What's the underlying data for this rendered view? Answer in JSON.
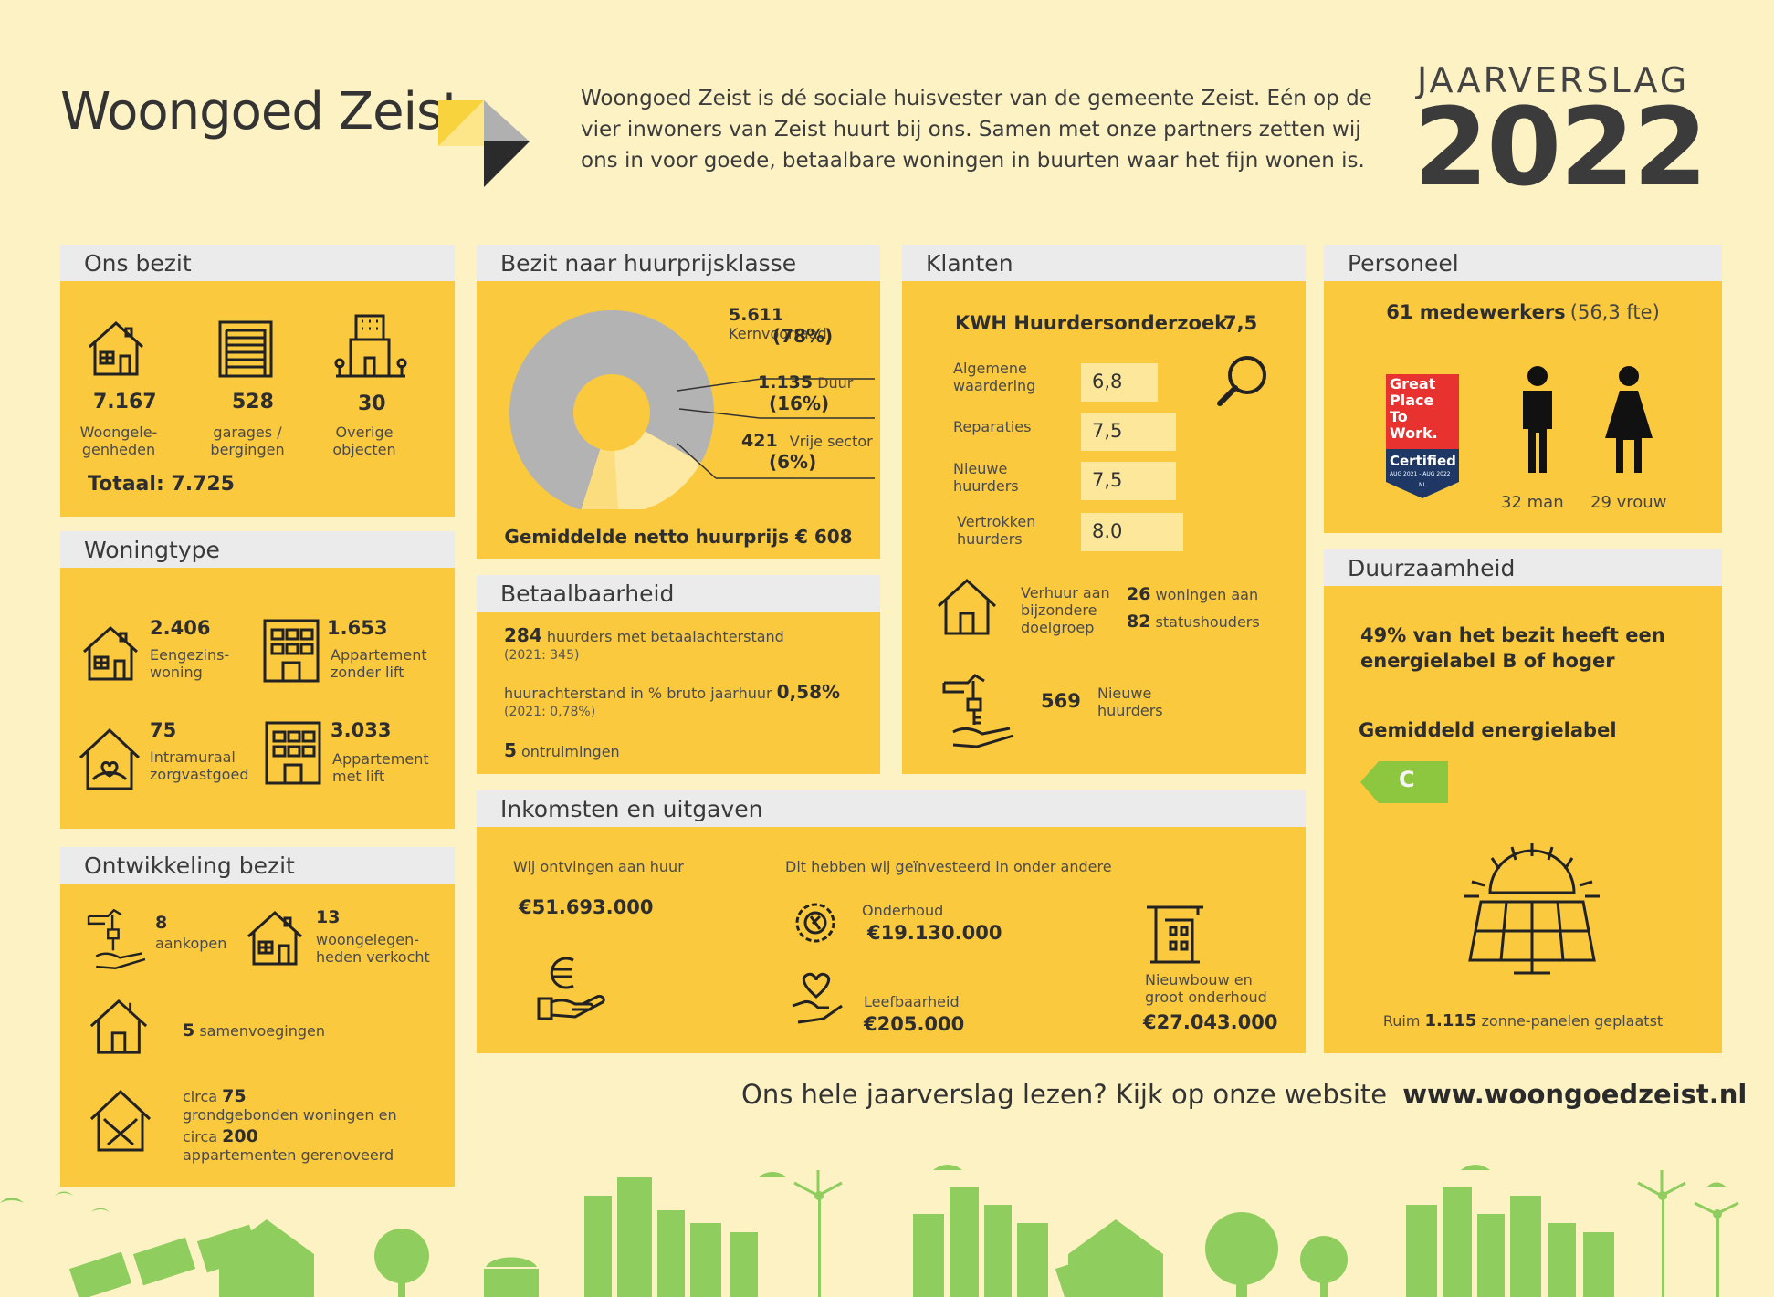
{
  "header": {
    "brand": "Woongoed Zeist",
    "intro": "Woongoed Zeist is dé sociale huisvester van de gemeente Zeist. Eén op de vier inwoners van Zeist huurt bij ons. Samen met onze partners zetten wij ons in voor goede, betaalbare woningen in buurten waar het fijn wonen is.",
    "report_label": "JAARVERSLAG",
    "report_year": "2022"
  },
  "ons_bezit": {
    "title": "Ons bezit",
    "items": [
      {
        "value": "7.167",
        "label1": "Woongele-",
        "label2": "genheden"
      },
      {
        "value": "528",
        "label1": "garages /",
        "label2": "bergingen"
      },
      {
        "value": "30",
        "label1": "Overige",
        "label2": "objecten"
      }
    ],
    "total": "Totaal: 7.725"
  },
  "huurprijs": {
    "title": "Bezit naar huurprijsklasse",
    "segments": [
      {
        "value": "5.611",
        "name": "Kernvoorraad",
        "pct": "(78%)"
      },
      {
        "value": "1.135",
        "name": "Duur",
        "pct": "(16%)"
      },
      {
        "value": "421",
        "name": "Vrije sector",
        "pct": "(6%)"
      }
    ],
    "footer": "Gemiddelde netto huurprijs € 608",
    "colors": {
      "kern": "#b3b3b3",
      "duur": "#fde9a3",
      "vrij": "#fcdd7e"
    }
  },
  "klanten": {
    "title": "Klanten",
    "kwh_label": "KWH Huurdersonderzoek",
    "kwh_score": "7,5",
    "scores": [
      {
        "label1": "Algemene",
        "label2": "waardering",
        "value": "6,8"
      },
      {
        "label1": "Reparaties",
        "label2": "",
        "value": "7,5"
      },
      {
        "label1": "Nieuwe",
        "label2": "huurders",
        "value": "7,5"
      },
      {
        "label1": "Vertrokken",
        "label2": "huurders",
        "value": "8.0"
      }
    ],
    "verhuur_label1": "Verhuur aan",
    "verhuur_label2": "bijzondere",
    "verhuur_label3": "doelgroep",
    "verhuur_n1": "26",
    "verhuur_t1": "woningen aan",
    "verhuur_n2": "82",
    "verhuur_t2": "statushouders",
    "new_value": "569",
    "new_label1": "Nieuwe",
    "new_label2": "huurders"
  },
  "personeel": {
    "title": "Personeel",
    "headcount": "61 medewerkers",
    "fte": "(56,3 fte)",
    "gptw": {
      "l1": "Great",
      "l2": "Place",
      "l3": "To",
      "l4": "Work.",
      "cert": "Certified",
      "dates": "AUG 2021 - AUG 2022",
      "country": "NL"
    },
    "men": "32 man",
    "women": "29 vrouw"
  },
  "woningtype": {
    "title": "Woningtype",
    "items": [
      {
        "value": "2.406",
        "label1": "Eengezins-",
        "label2": "woning"
      },
      {
        "value": "1.653",
        "label1": "Appartement",
        "label2": "zonder lift"
      },
      {
        "value": "75",
        "label1": "Intramuraal",
        "label2": "zorgvastgoed"
      },
      {
        "value": "3.033",
        "label1": "Appartement",
        "label2": "met lift"
      }
    ]
  },
  "betaalbaarheid": {
    "title": "Betaalbaarheid",
    "arrears_value": "284",
    "arrears_text": "huurders met betaalachterstand",
    "arrears_prev": "(2021: 345)",
    "pct_text": "huurachterstand in % bruto jaarhuur",
    "pct_value": "0,58%",
    "pct_prev": "(2021: 0,78%)",
    "evictions_value": "5",
    "evictions_text": "ontruimingen"
  },
  "duurzaamheid": {
    "title": "Duurzaamheid",
    "label_text1": "49% van het bezit heeft een",
    "label_text2": "energielabel B of hoger",
    "avg_label": "Gemiddeld energielabel",
    "avg_value": "C",
    "solar_prefix": "Ruim",
    "solar_value": "1.115",
    "solar_suffix": "zonne-panelen geplaatst"
  },
  "ontwikkeling": {
    "title": "Ontwikkeling bezit",
    "bought_value": "8",
    "bought_label": "aankopen",
    "sold_value": "13",
    "sold_label1": "woongelegen-",
    "sold_label2": "heden verkocht",
    "merged_value": "5",
    "merged_label": "samenvoegingen",
    "reno_prefix1": "circa",
    "reno_value1": "75",
    "reno_text1": "grondgebonden woningen en",
    "reno_prefix2": "circa",
    "reno_value2": "200",
    "reno_text2": "appartementen gerenoveerd"
  },
  "inkomsten": {
    "title": "Inkomsten en uitgaven",
    "income_label": "Wij ontvingen aan huur",
    "income_value": "€51.693.000",
    "invest_label": "Dit hebben wij geïnvesteerd in onder andere",
    "items": [
      {
        "label": "Onderhoud",
        "value": "€19.130.000"
      },
      {
        "label": "Leefbaarheid",
        "value": "€205.000"
      }
    ],
    "nieuwbouw_label1": "Nieuwbouw en",
    "nieuwbouw_label2": "groot onderhoud",
    "nieuwbouw_value": "€27.043.000"
  },
  "footer": {
    "cta": "Ons hele jaarverslag lezen? Kijk op onze website",
    "url": "www.woongoedzeist.nl"
  }
}
